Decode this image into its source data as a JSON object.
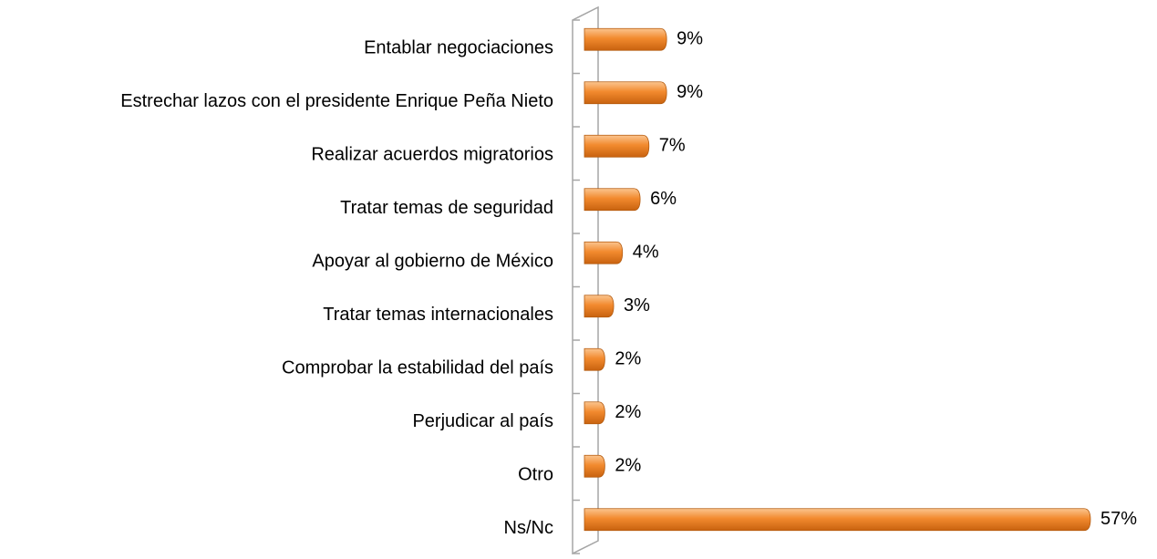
{
  "chart_data": {
    "type": "bar",
    "orientation": "horizontal",
    "categories": [
      "Entablar negociaciones",
      "Estrechar lazos con el presidente Enrique Peña Nieto",
      "Realizar acuerdos migratorios",
      "Tratar temas de seguridad",
      "Apoyar al gobierno de México",
      "Tratar temas internacionales",
      "Comprobar la estabilidad del país",
      "Perjudicar al país",
      "Otro",
      "Ns/Nc"
    ],
    "values": [
      9,
      9,
      7,
      6,
      4,
      3,
      2,
      2,
      2,
      57
    ],
    "value_labels": [
      "9%",
      "9%",
      "7%",
      "6%",
      "4%",
      "3%",
      "2%",
      "2%",
      "2%",
      "57%"
    ],
    "color": "#f28a2e"
  }
}
